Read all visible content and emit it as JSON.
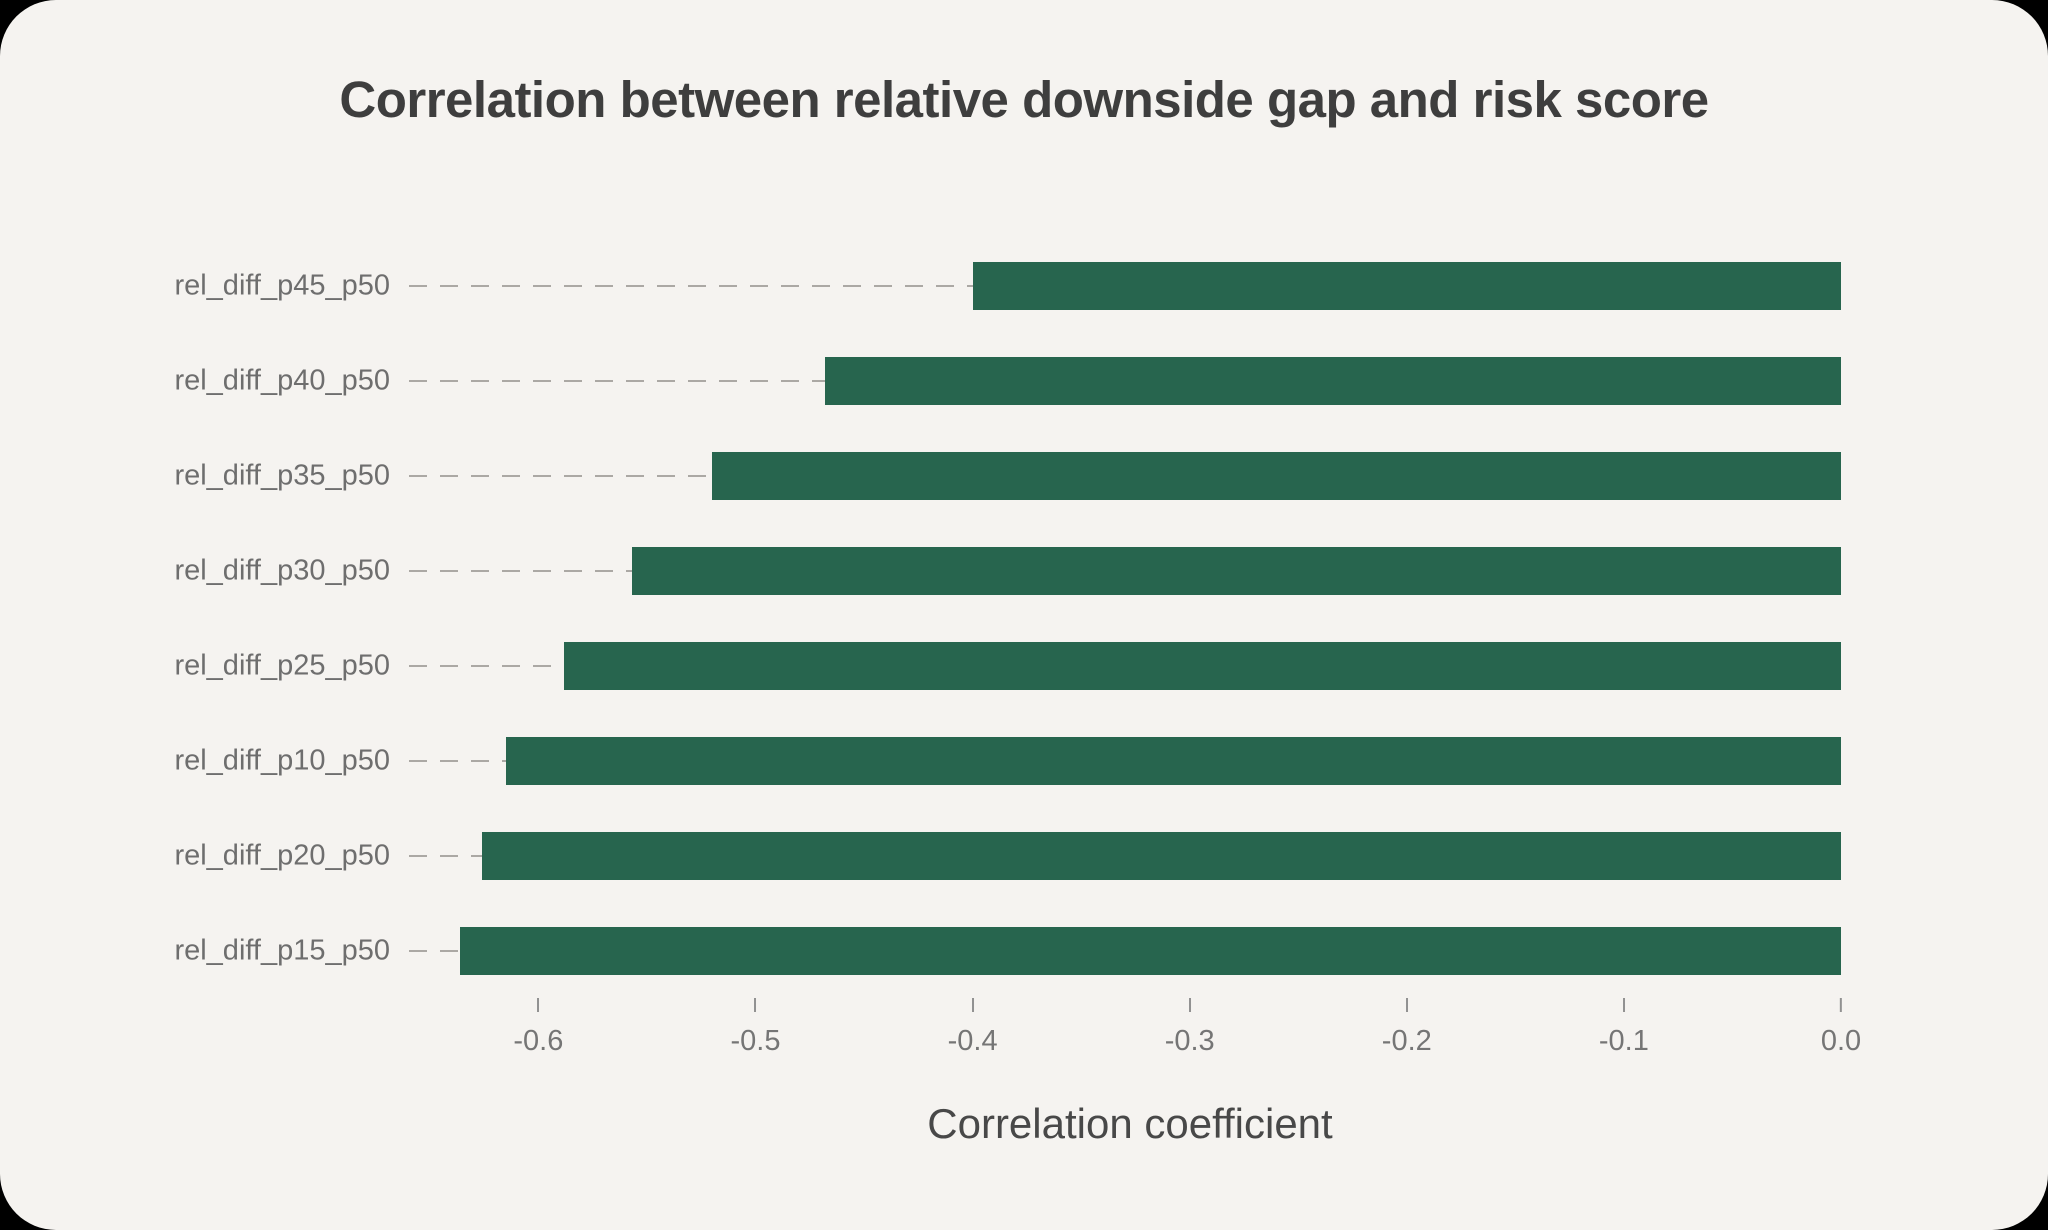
{
  "theme": {
    "outside_background": "#000000",
    "card_background": "#f5f3f0",
    "bar_color": "#27654e",
    "title_color": "#3e3e3e",
    "label_color": "#6e6e6e",
    "tick_label_color": "#757575",
    "axis_label_color": "#484848",
    "leader_line_color": "#aba8a4"
  },
  "chart_data": {
    "type": "bar",
    "orientation": "horizontal",
    "title": "Correlation between relative downside gap and risk score",
    "xlabel": "Correlation coefficient",
    "ylabel": "",
    "categories": [
      "rel_diff_p45_p50",
      "rel_diff_p40_p50",
      "rel_diff_p35_p50",
      "rel_diff_p30_p50",
      "rel_diff_p25_p50",
      "rel_diff_p10_p50",
      "rel_diff_p20_p50",
      "rel_diff_p15_p50"
    ],
    "values": [
      -0.4,
      -0.468,
      -0.52,
      -0.557,
      -0.588,
      -0.615,
      -0.626,
      -0.636
    ],
    "bar_color": "#27654e",
    "xlim": [
      -0.655,
      0
    ],
    "xticks": [
      -0.6,
      -0.5,
      -0.4,
      -0.3,
      -0.2,
      -0.1,
      0.0
    ],
    "xtick_labels": [
      "-0.6",
      "-0.5",
      "-0.4",
      "-0.3",
      "-0.2",
      "-0.1",
      "0.0"
    ],
    "grid": false,
    "legend": false,
    "leader_lines": "dashed from category label to bar start"
  }
}
